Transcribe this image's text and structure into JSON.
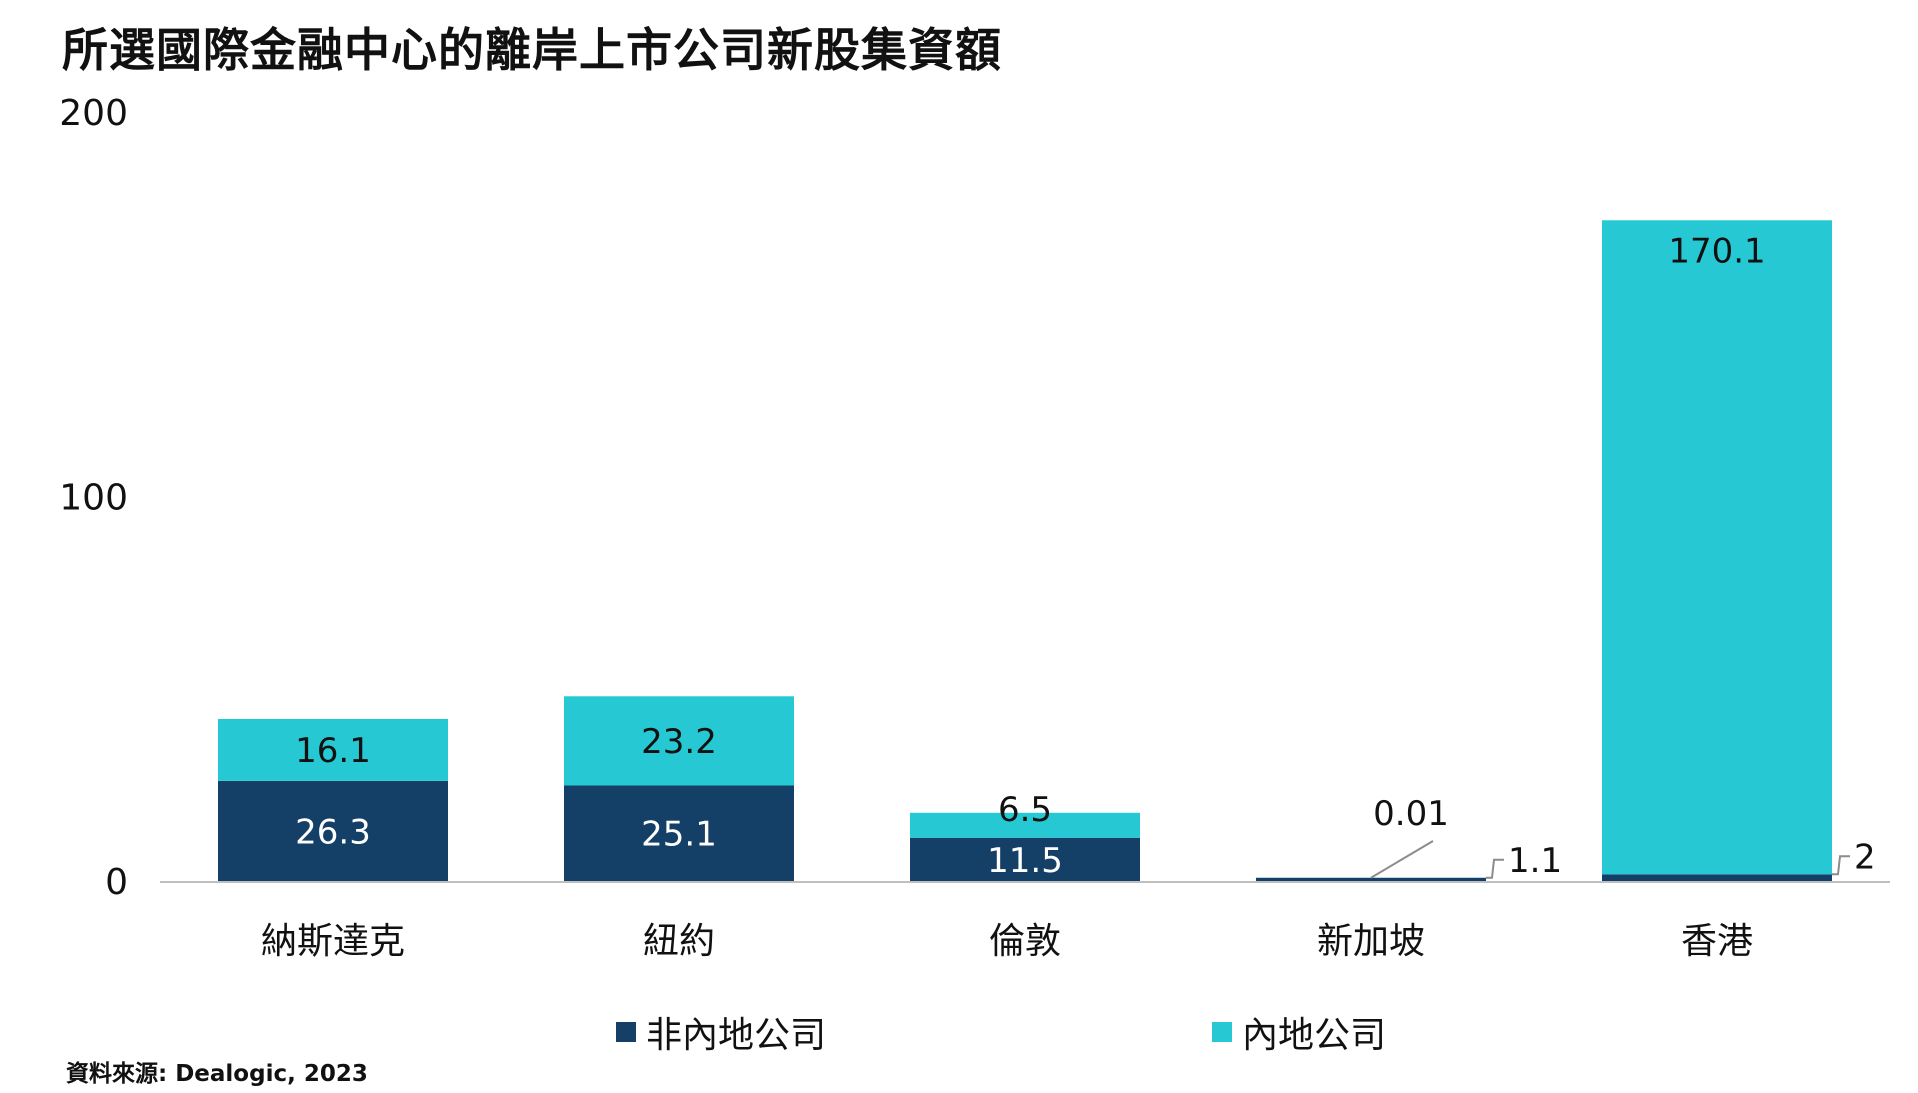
{
  "title": "所選國際金融中心的離岸上市公司新股集資額",
  "source": "資料來源: Dealogic, 2023",
  "colors": {
    "non_mainland": "#143f66",
    "mainland": "#26c9d3",
    "axis": "#bfbfbf",
    "leader": "#8c8c8c"
  },
  "chart_data": {
    "type": "bar",
    "stacked": true,
    "categories": [
      "納斯達克",
      "紐約",
      "倫敦",
      "新加坡",
      "香港"
    ],
    "series": [
      {
        "name": "非內地公司",
        "values": [
          26.3,
          25.1,
          11.5,
          1.1,
          2
        ],
        "labels": [
          "26.3",
          "25.1",
          "11.5",
          "1.1",
          "2"
        ]
      },
      {
        "name": "內地公司",
        "values": [
          16.1,
          23.2,
          6.5,
          0.01,
          170.1
        ],
        "labels": [
          "16.1",
          "23.2",
          "6.5",
          "0.01",
          "170.1"
        ]
      }
    ],
    "ylim": [
      0,
      200
    ],
    "yticks": [
      0,
      100,
      200
    ],
    "ytick_labels": [
      "0",
      "100",
      "200"
    ],
    "grid": false,
    "legend_position": "bottom"
  }
}
